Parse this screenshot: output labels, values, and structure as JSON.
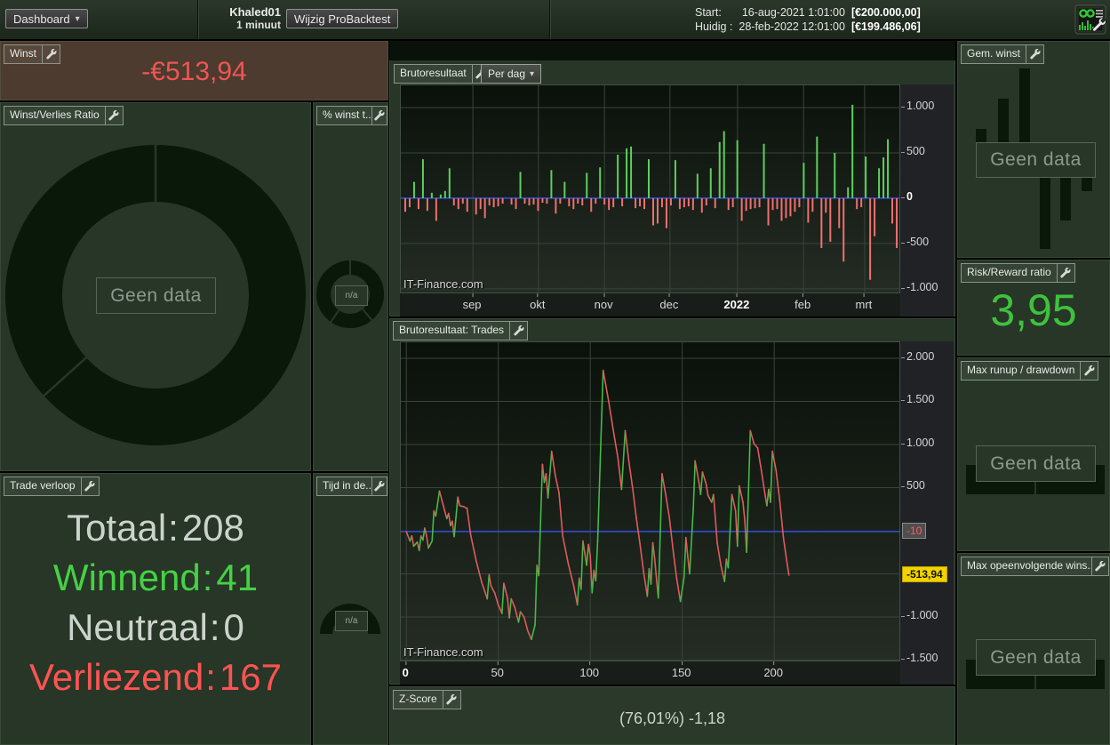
{
  "top_bar": {
    "dashboard_button": "Dashboard",
    "backtest_name": "Khaled01",
    "timeframe": "1 minuut",
    "edit_button": "Wijzig ProBacktest",
    "start_label": "Start:",
    "start_datetime": "16-aug-2021 1:01:00",
    "start_capital": "[€200.000,00]",
    "current_label": "Huidig :",
    "current_datetime": "28-feb-2022 12:01:00",
    "current_capital": "[€199.486,06]"
  },
  "panels": {
    "winst": {
      "title": "Winst",
      "value": "-€513,94"
    },
    "winst_verlies_ratio": {
      "title": "Winst/Verlies Ratio",
      "no_data": "Geen data"
    },
    "pct_winst": {
      "title": "% winst t...",
      "na": "n/a"
    },
    "trade_verloop": {
      "title": "Trade verloop",
      "rows": [
        {
          "label": "Totaal",
          "value": "208",
          "tone": "gray"
        },
        {
          "label": "Winnend",
          "value": "41",
          "tone": "green"
        },
        {
          "label": "Neutraal",
          "value": "0",
          "tone": "gray"
        },
        {
          "label": "Verliezend",
          "value": "167",
          "tone": "red"
        }
      ]
    },
    "tijd_in_de": {
      "title": "Tijd in de...",
      "na": "n/a"
    },
    "bruto_dag": {
      "title": "Brutoresultaat",
      "mode_button": "Per dag",
      "watermark": "IT-Finance.com"
    },
    "bruto_trades": {
      "title": "Brutoresultaat: Trades",
      "watermark": "IT-Finance.com"
    },
    "z_score": {
      "title": "Z-Score",
      "value": "(76,01%) -1,18"
    },
    "gem_winst": {
      "title": "Gem. winst",
      "no_data": "Geen data"
    },
    "risk_reward": {
      "title": "Risk/Reward ratio",
      "value": "3,95"
    },
    "max_runup": {
      "title": "Max runup / drawdown",
      "no_data": "Geen data"
    },
    "max_wins": {
      "title": "Max opeenvolgende wins...",
      "no_data": "Geen data"
    }
  },
  "colors": {
    "panel_bg": "#273626",
    "winst_panel_bg": "#4c3b2e",
    "grid": "#39443a",
    "zero_line": "#2f4fe0",
    "bar_up": "#5ecf5e",
    "bar_down": "#f07070",
    "line_up": "#46b946",
    "line_down": "#e05b5b",
    "positive_text": "#45d145",
    "negative_text": "#ff5353",
    "loss_value": "#f05555",
    "risk_reward_value": "#3ec23e",
    "last_value_badge_bg": "#f2d200"
  },
  "chart_data": [
    {
      "type": "bar",
      "title": "Brutoresultaat",
      "mode": "Per dag",
      "x_ticks": [
        {
          "label": "sep",
          "x": 0.144
        },
        {
          "label": "okt",
          "x": 0.275
        },
        {
          "label": "nov",
          "x": 0.407
        },
        {
          "label": "dec",
          "x": 0.538
        },
        {
          "label": "2022",
          "x": 0.673,
          "bold": true
        },
        {
          "label": "feb",
          "x": 0.805
        },
        {
          "label": "mrt",
          "x": 0.927
        }
      ],
      "y_ticks": [
        {
          "label": "1.000",
          "v": 1000
        },
        {
          "label": "500",
          "v": 500
        },
        {
          "label": "0",
          "v": 0,
          "bold": true
        },
        {
          "label": "-500",
          "v": -500
        },
        {
          "label": "-1.000",
          "v": -1000
        }
      ],
      "ylim": [
        -1060,
        1245
      ],
      "grid": true,
      "values": [
        -150,
        -100,
        180,
        -120,
        430,
        -140,
        60,
        -250,
        40,
        80,
        330,
        -80,
        -120,
        -60,
        -150,
        null,
        -180,
        -120,
        -220,
        -80,
        -100,
        -90,
        -60,
        null,
        -70,
        -120,
        290,
        -60,
        -80,
        -70,
        -140,
        -50,
        -60,
        310,
        -170,
        -60,
        180,
        -90,
        -120,
        -60,
        -80,
        280,
        -150,
        -60,
        340,
        -70,
        -130,
        -100,
        480,
        -90,
        550,
        570,
        -110,
        -90,
        -120,
        430,
        -300,
        -280,
        -100,
        -330,
        -80,
        420,
        -120,
        -100,
        -90,
        -130,
        270,
        -160,
        -80,
        330,
        -110,
        620,
        740,
        -130,
        -100,
        640,
        -250,
        -140,
        -120,
        -110,
        -100,
        600,
        -300,
        -130,
        -120,
        -250,
        -220,
        -200,
        -150,
        -100,
        390,
        -270,
        -150,
        680,
        -550,
        -160,
        -480,
        500,
        -330,
        -700,
        120,
        1030,
        -120,
        -100,
        460,
        -900,
        -420,
        330,
        450,
        650,
        -280,
        -550
      ]
    },
    {
      "type": "line",
      "title": "Brutoresultaat: Trades",
      "x_ticks": [
        {
          "label": "0",
          "v": 0,
          "bold": true
        },
        {
          "label": "50",
          "v": 50
        },
        {
          "label": "100",
          "v": 100
        },
        {
          "label": "150",
          "v": 150
        },
        {
          "label": "200",
          "v": 200
        }
      ],
      "y_ticks": [
        {
          "label": "2.000",
          "v": 2000
        },
        {
          "label": "1.500",
          "v": 1500
        },
        {
          "label": "1.000",
          "v": 1000
        },
        {
          "label": "500",
          "v": 500
        },
        {
          "label": "-1.000",
          "v": -1000
        },
        {
          "label": "-1.500",
          "v": -1500
        }
      ],
      "grid_extra_h": [
        -500
      ],
      "xlim": [
        -3,
        269
      ],
      "ylim": [
        -1526,
        2185
      ],
      "baseline": {
        "value": -10,
        "label": "-10"
      },
      "last_value": {
        "value": -513.94,
        "label": "-513,94"
      },
      "points": [
        [
          0,
          -10
        ],
        [
          2,
          -120
        ],
        [
          3,
          -60
        ],
        [
          4,
          -180
        ],
        [
          6,
          -130
        ],
        [
          7,
          -230
        ],
        [
          8,
          -60
        ],
        [
          9,
          -110
        ],
        [
          10,
          30
        ],
        [
          11,
          -60
        ],
        [
          12,
          -200
        ],
        [
          14,
          -120
        ],
        [
          15,
          230
        ],
        [
          16,
          170
        ],
        [
          18,
          460
        ],
        [
          20,
          300
        ],
        [
          22,
          140
        ],
        [
          23,
          200
        ],
        [
          24,
          60
        ],
        [
          25,
          110
        ],
        [
          26,
          -70
        ],
        [
          28,
          390
        ],
        [
          29,
          290
        ],
        [
          31,
          280
        ],
        [
          33,
          260
        ],
        [
          35,
          -50
        ],
        [
          38,
          -350
        ],
        [
          41,
          -600
        ],
        [
          44,
          -790
        ],
        [
          45,
          -510
        ],
        [
          46,
          -640
        ],
        [
          48,
          -720
        ],
        [
          50,
          -860
        ],
        [
          52,
          -960
        ],
        [
          53,
          -610
        ],
        [
          55,
          -780
        ],
        [
          56,
          -1010
        ],
        [
          57,
          -790
        ],
        [
          59,
          -890
        ],
        [
          61,
          -1060
        ],
        [
          62,
          -940
        ],
        [
          64,
          -1000
        ],
        [
          66,
          -1160
        ],
        [
          68,
          -1260
        ],
        [
          70,
          -1090
        ],
        [
          71,
          -400
        ],
        [
          72,
          -520
        ],
        [
          74,
          770
        ],
        [
          75,
          560
        ],
        [
          76,
          660
        ],
        [
          77,
          380
        ],
        [
          79,
          920
        ],
        [
          81,
          640
        ],
        [
          83,
          440
        ],
        [
          85,
          -60
        ],
        [
          88,
          -380
        ],
        [
          91,
          -640
        ],
        [
          93,
          -860
        ],
        [
          94,
          -550
        ],
        [
          95,
          -680
        ],
        [
          96,
          -120
        ],
        [
          97,
          -260
        ],
        [
          98,
          -400
        ],
        [
          99,
          -160
        ],
        [
          100,
          -290
        ],
        [
          101,
          -720
        ],
        [
          102,
          -460
        ],
        [
          103,
          -580
        ],
        [
          104,
          -120
        ],
        [
          107,
          1860
        ],
        [
          110,
          1500
        ],
        [
          113,
          1100
        ],
        [
          115,
          850
        ],
        [
          117,
          480
        ],
        [
          119,
          1160
        ],
        [
          121,
          800
        ],
        [
          123,
          500
        ],
        [
          125,
          150
        ],
        [
          127,
          -150
        ],
        [
          129,
          -480
        ],
        [
          131,
          -760
        ],
        [
          132,
          -440
        ],
        [
          133,
          -620
        ],
        [
          134,
          -140
        ],
        [
          135,
          -320
        ],
        [
          136,
          -560
        ],
        [
          137,
          -780
        ],
        [
          139,
          660
        ],
        [
          141,
          420
        ],
        [
          143,
          150
        ],
        [
          145,
          -220
        ],
        [
          147,
          -560
        ],
        [
          149,
          -820
        ],
        [
          151,
          -540
        ],
        [
          152,
          -80
        ],
        [
          153,
          -300
        ],
        [
          154,
          -500
        ],
        [
          156,
          250
        ],
        [
          157,
          810
        ],
        [
          159,
          570
        ],
        [
          160,
          420
        ],
        [
          161,
          680
        ],
        [
          163,
          540
        ],
        [
          164,
          410
        ],
        [
          166,
          330
        ],
        [
          167,
          420
        ],
        [
          169,
          -140
        ],
        [
          171,
          -400
        ],
        [
          173,
          -590
        ],
        [
          174,
          -330
        ],
        [
          175,
          -430
        ],
        [
          177,
          420
        ],
        [
          179,
          230
        ],
        [
          180,
          -180
        ],
        [
          181,
          520
        ],
        [
          183,
          330
        ],
        [
          184,
          120
        ],
        [
          185,
          -250
        ],
        [
          187,
          1160
        ],
        [
          189,
          1010
        ],
        [
          191,
          960
        ],
        [
          193,
          700
        ],
        [
          195,
          420
        ],
        [
          196,
          290
        ],
        [
          197,
          480
        ],
        [
          198,
          330
        ],
        [
          199,
          920
        ],
        [
          201,
          700
        ],
        [
          203,
          350
        ],
        [
          205,
          -80
        ],
        [
          207,
          -380
        ],
        [
          208,
          -513.94
        ]
      ]
    }
  ]
}
